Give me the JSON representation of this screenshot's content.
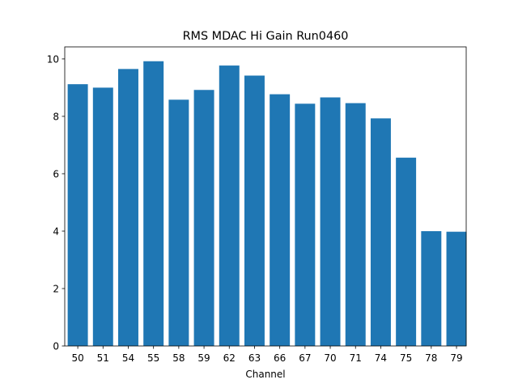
{
  "chart_data": {
    "type": "bar",
    "title": "RMS MDAC Hi Gain Run0460",
    "xlabel": "Channel",
    "ylabel": "",
    "categories": [
      "50",
      "51",
      "54",
      "55",
      "58",
      "59",
      "62",
      "63",
      "66",
      "67",
      "70",
      "71",
      "74",
      "75",
      "78",
      "79"
    ],
    "values": [
      9.12,
      9.0,
      9.65,
      9.92,
      8.58,
      8.92,
      9.77,
      9.42,
      8.77,
      8.44,
      8.66,
      8.46,
      7.93,
      6.56,
      4.0,
      3.98
    ],
    "ylim": [
      0,
      10.42
    ],
    "yticks": [
      0,
      2,
      4,
      6,
      8,
      10
    ],
    "bar_color": "#1f77b4",
    "grid": false,
    "legend": "none"
  }
}
